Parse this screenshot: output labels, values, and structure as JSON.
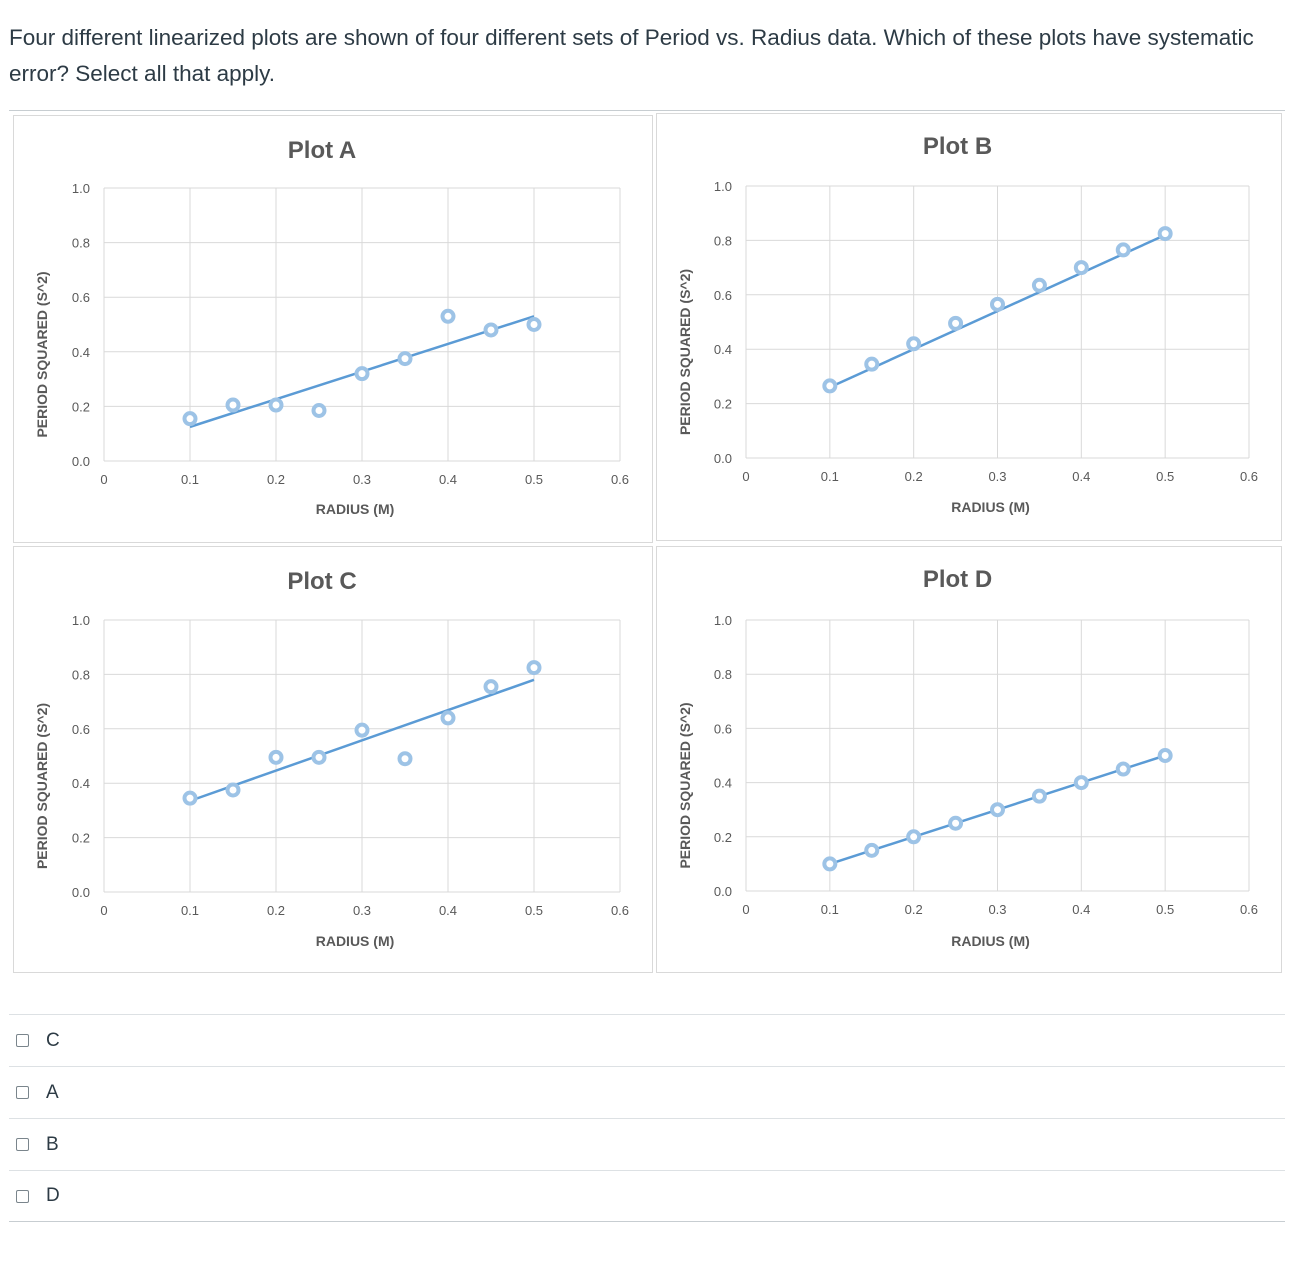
{
  "question": {
    "text": "Four different linearized plots are shown of four different sets of Period vs. Radius data. Which of these plots have systematic error? Select all that apply."
  },
  "colors": {
    "fit_line": "#5b9bd5",
    "marker_edge": "#9dc3e6",
    "grid": "#d9d9d9",
    "text": "#595959"
  },
  "chart_data": [
    {
      "type": "scatter",
      "title": "Plot A",
      "xlabel": "RADIUS (M)",
      "ylabel": "PERIOD SQUARED (S^2)",
      "xlim": [
        0,
        0.6
      ],
      "ylim": [
        0,
        1.0
      ],
      "x_ticks": [
        "0",
        "0.1",
        "0.2",
        "0.3",
        "0.4",
        "0.5",
        "0.6"
      ],
      "y_ticks": [
        "0.0",
        "0.2",
        "0.4",
        "0.6",
        "0.8",
        "1.0"
      ],
      "x": [
        0.1,
        0.15,
        0.2,
        0.25,
        0.3,
        0.35,
        0.4,
        0.45,
        0.5
      ],
      "y": [
        0.155,
        0.205,
        0.205,
        0.185,
        0.32,
        0.375,
        0.53,
        0.48,
        0.5
      ],
      "fit": {
        "x": [
          0.1,
          0.5
        ],
        "y": [
          0.125,
          0.53
        ]
      },
      "grid": true
    },
    {
      "type": "scatter",
      "title": "Plot B",
      "xlabel": "RADIUS (M)",
      "ylabel": "PERIOD SQUARED (S^2)",
      "xlim": [
        0,
        0.6
      ],
      "ylim": [
        0,
        1.0
      ],
      "x_ticks": [
        "0",
        "0.1",
        "0.2",
        "0.3",
        "0.4",
        "0.5",
        "0.6"
      ],
      "y_ticks": [
        "0.0",
        "0.2",
        "0.4",
        "0.6",
        "0.8",
        "1.0"
      ],
      "x": [
        0.1,
        0.15,
        0.2,
        0.25,
        0.3,
        0.35,
        0.4,
        0.45,
        0.5
      ],
      "y": [
        0.265,
        0.345,
        0.42,
        0.495,
        0.565,
        0.635,
        0.7,
        0.765,
        0.825
      ],
      "fit": {
        "x": [
          0.1,
          0.5
        ],
        "y": [
          0.26,
          0.82
        ]
      },
      "grid": true
    },
    {
      "type": "scatter",
      "title": "Plot C",
      "xlabel": "RADIUS (M)",
      "ylabel": "PERIOD SQUARED (S^2)",
      "xlim": [
        0,
        0.6
      ],
      "ylim": [
        0,
        1.0
      ],
      "x_ticks": [
        "0",
        "0.1",
        "0.2",
        "0.3",
        "0.4",
        "0.5",
        "0.6"
      ],
      "y_ticks": [
        "0.0",
        "0.2",
        "0.4",
        "0.6",
        "0.8",
        "1.0"
      ],
      "x": [
        0.1,
        0.15,
        0.2,
        0.25,
        0.3,
        0.35,
        0.4,
        0.45,
        0.5
      ],
      "y": [
        0.345,
        0.375,
        0.495,
        0.495,
        0.595,
        0.49,
        0.64,
        0.755,
        0.825
      ],
      "fit": {
        "x": [
          0.1,
          0.5
        ],
        "y": [
          0.335,
          0.78
        ]
      },
      "grid": true
    },
    {
      "type": "scatter",
      "title": "Plot D",
      "xlabel": "RADIUS (M)",
      "ylabel": "PERIOD SQUARED (S^2)",
      "xlim": [
        0,
        0.6
      ],
      "ylim": [
        0,
        1.0
      ],
      "x_ticks": [
        "0",
        "0.1",
        "0.2",
        "0.3",
        "0.4",
        "0.5",
        "0.6"
      ],
      "y_ticks": [
        "0.0",
        "0.2",
        "0.4",
        "0.6",
        "0.8",
        "1.0"
      ],
      "x": [
        0.1,
        0.15,
        0.2,
        0.25,
        0.3,
        0.35,
        0.4,
        0.45,
        0.5
      ],
      "y": [
        0.1,
        0.15,
        0.2,
        0.25,
        0.3,
        0.35,
        0.4,
        0.45,
        0.5
      ],
      "fit": {
        "x": [
          0.1,
          0.5
        ],
        "y": [
          0.1,
          0.5
        ]
      },
      "grid": true
    }
  ],
  "answers": {
    "options": [
      {
        "label": "C"
      },
      {
        "label": "A"
      },
      {
        "label": "B"
      },
      {
        "label": "D"
      }
    ]
  }
}
